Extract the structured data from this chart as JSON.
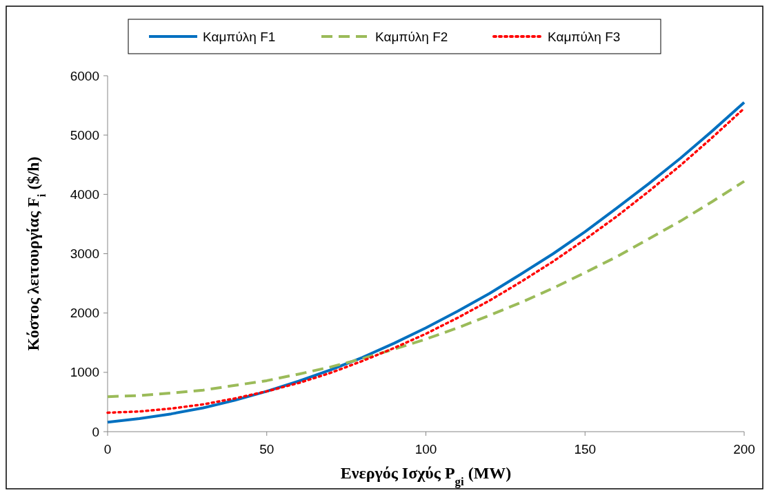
{
  "chart_data": {
    "type": "line",
    "xlabel": "Ενεργός Ισχύς P$_{gi}$ (MW)",
    "ylabel": "Κόστος λειτουργίας F$_{i}$ ($/h)",
    "x": [
      0,
      10,
      20,
      30,
      40,
      50,
      60,
      70,
      80,
      90,
      100,
      110,
      120,
      130,
      140,
      150,
      160,
      170,
      180,
      190,
      200
    ],
    "series": [
      {
        "name": "Καμπύλη F1",
        "color": "#0070c0",
        "line_style": "solid",
        "values": [
          160,
          220,
          300,
          400,
          530,
          680,
          850,
          1040,
          1250,
          1490,
          1750,
          2030,
          2330,
          2660,
          3000,
          3370,
          3770,
          4180,
          4610,
          5070,
          5550
        ]
      },
      {
        "name": "Καμπύλη F2",
        "color": "#9bbb59",
        "line_style": "dashed",
        "values": [
          590,
          610,
          650,
          700,
          780,
          860,
          970,
          1090,
          1230,
          1390,
          1560,
          1750,
          1960,
          2180,
          2420,
          2680,
          2950,
          3250,
          3550,
          3880,
          4220
        ]
      },
      {
        "name": "Καμπύλη F3",
        "color": "#ff0000",
        "line_style": "dotted",
        "values": [
          320,
          340,
          390,
          460,
          560,
          680,
          820,
          990,
          1190,
          1410,
          1650,
          1920,
          2210,
          2530,
          2870,
          3240,
          3630,
          4050,
          4490,
          4960,
          5450
        ]
      }
    ],
    "xlim": [
      0,
      200
    ],
    "xticks": [
      0,
      50,
      100,
      150,
      200
    ],
    "ylim": [
      0,
      6000
    ],
    "yticks": [
      0,
      1000,
      2000,
      3000,
      4000,
      5000,
      6000
    ],
    "grid": false,
    "legend": "top",
    "marker": "none"
  }
}
